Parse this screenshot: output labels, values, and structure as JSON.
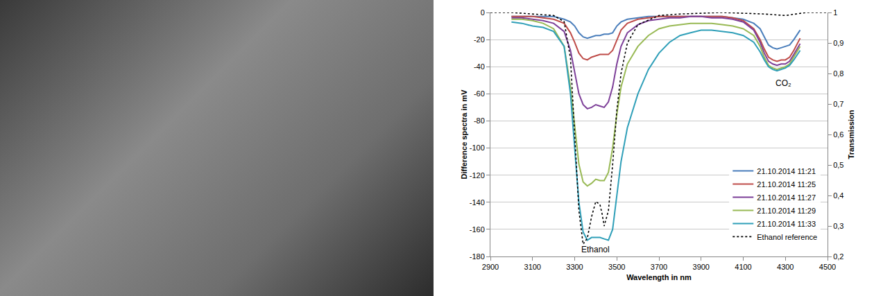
{
  "chart_data": {
    "type": "line",
    "x_label": "Wavelength in nm",
    "y_label": "Difference spectra in mV",
    "y2_label": "Transmission",
    "xlim": [
      2900,
      4500
    ],
    "xticks": [
      2900,
      3100,
      3300,
      3500,
      3700,
      3900,
      4100,
      4300,
      4500
    ],
    "ylim": [
      -180,
      0
    ],
    "yticks": [
      -180,
      -160,
      -140,
      -120,
      -100,
      -80,
      -60,
      -40,
      -20,
      0
    ],
    "y2lim": [
      0.2,
      1
    ],
    "y2ticks": [
      {
        "value": 0.2,
        "label": "0,2"
      },
      {
        "value": 0.3,
        "label": "0,3"
      },
      {
        "value": 0.4,
        "label": "0,4"
      },
      {
        "value": 0.5,
        "label": "0,5"
      },
      {
        "value": 0.6,
        "label": "0,6"
      },
      {
        "value": 0.7,
        "label": "0,7"
      },
      {
        "value": 0.8,
        "label": "0,8"
      },
      {
        "value": 0.9,
        "label": "0,9"
      },
      1
    ],
    "grid": true,
    "legend": "lower right",
    "x": [
      3000,
      3050,
      3100,
      3150,
      3200,
      3250,
      3280,
      3300,
      3320,
      3340,
      3360,
      3380,
      3400,
      3420,
      3440,
      3460,
      3480,
      3500,
      3520,
      3550,
      3600,
      3650,
      3700,
      3750,
      3800,
      3850,
      3900,
      3950,
      4000,
      4050,
      4100,
      4150,
      4180,
      4200,
      4220,
      4240,
      4260,
      4280,
      4300,
      4320,
      4340,
      4370
    ],
    "series": [
      {
        "name": "21.10.2014 11:21",
        "color": "#4a7ebb",
        "line_style": "solid",
        "values": [
          -3,
          -3,
          -3,
          -3,
          -3,
          -5,
          -7,
          -10,
          -15,
          -18,
          -19,
          -18,
          -17,
          -17,
          -16,
          -16,
          -15,
          -10,
          -7,
          -5,
          -4,
          -3,
          -3,
          -3,
          -3,
          -3,
          -3,
          -3,
          -3,
          -4,
          -5,
          -8,
          -12,
          -18,
          -24,
          -26,
          -27,
          -26,
          -25,
          -24,
          -20,
          -13
        ]
      },
      {
        "name": "21.10.2014 11:25",
        "color": "#be4b48",
        "line_style": "solid",
        "values": [
          -3,
          -3,
          -3,
          -4,
          -5,
          -8,
          -15,
          -22,
          -30,
          -34,
          -35,
          -33,
          -32,
          -31,
          -31,
          -31,
          -28,
          -20,
          -13,
          -8,
          -5,
          -4,
          -3,
          -3,
          -3,
          -3,
          -3,
          -3,
          -3,
          -4,
          -6,
          -12,
          -20,
          -27,
          -33,
          -35,
          -36,
          -35,
          -35,
          -33,
          -28,
          -19
        ]
      },
      {
        "name": "21.10.2014 11:27",
        "color": "#7d3f98",
        "line_style": "solid",
        "values": [
          -4,
          -4,
          -5,
          -6,
          -8,
          -14,
          -28,
          -45,
          -60,
          -68,
          -71,
          -70,
          -68,
          -69,
          -70,
          -66,
          -55,
          -38,
          -25,
          -15,
          -9,
          -6,
          -5,
          -4,
          -4,
          -3,
          -3,
          -4,
          -4,
          -5,
          -7,
          -13,
          -22,
          -30,
          -36,
          -38,
          -39,
          -38,
          -38,
          -36,
          -31,
          -23
        ]
      },
      {
        "name": "21.10.2014 11:29",
        "color": "#98b954",
        "line_style": "solid",
        "values": [
          -5,
          -5,
          -6,
          -8,
          -12,
          -25,
          -55,
          -85,
          -112,
          -125,
          -128,
          -126,
          -123,
          -124,
          -124,
          -118,
          -100,
          -75,
          -55,
          -38,
          -25,
          -17,
          -12,
          -10,
          -9,
          -8,
          -8,
          -8,
          -9,
          -10,
          -12,
          -17,
          -25,
          -33,
          -39,
          -41,
          -42,
          -41,
          -40,
          -38,
          -33,
          -25
        ]
      },
      {
        "name": "21.10.2014 11:33",
        "color": "#2f9fb8",
        "line_style": "solid",
        "values": [
          -7,
          -8,
          -10,
          -11,
          -14,
          -25,
          -60,
          -100,
          -140,
          -162,
          -168,
          -166,
          -166,
          -166,
          -167,
          -168,
          -160,
          -135,
          -110,
          -85,
          -60,
          -42,
          -30,
          -22,
          -17,
          -15,
          -13,
          -13,
          -14,
          -15,
          -17,
          -22,
          -29,
          -35,
          -40,
          -42,
          -43,
          -42,
          -41,
          -39,
          -35,
          -28
        ]
      },
      {
        "name": "Ethanol reference",
        "color": "#000000",
        "line_style": "dotted",
        "axis": "y2",
        "x": [
          2900,
          3000,
          3100,
          3200,
          3250,
          3280,
          3300,
          3320,
          3340,
          3360,
          3380,
          3400,
          3420,
          3430,
          3440,
          3460,
          3480,
          3500,
          3520,
          3550,
          3600,
          3700,
          3800,
          4000,
          4200,
          4300,
          4400,
          4500
        ],
        "values": [
          1.0,
          1.0,
          0.995,
          0.99,
          0.97,
          0.85,
          0.6,
          0.35,
          0.24,
          0.26,
          0.33,
          0.38,
          0.37,
          0.34,
          0.3,
          0.35,
          0.5,
          0.68,
          0.8,
          0.9,
          0.96,
          0.99,
          0.995,
          1.0,
          0.995,
          0.99,
          1.0,
          1.0
        ]
      }
    ],
    "annotations": [
      {
        "text": "Ethanol",
        "x": 3400,
        "y": -175
      },
      {
        "text": "CO₂",
        "x": 4290,
        "y": -52
      }
    ]
  }
}
